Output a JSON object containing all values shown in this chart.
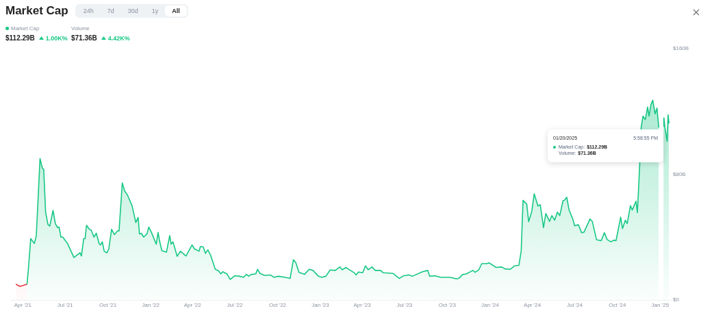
{
  "chart_data": {
    "type": "area",
    "title": "Market Cap",
    "annotations": [
      "24h",
      "7d",
      "30d",
      "1y",
      "All",
      "Market Cap",
      "$112.29B",
      "1.00K%",
      "Volume",
      "$71.36B",
      "4.42K%",
      "01/20/2025",
      "5:58:55 PM",
      "Market Cap:",
      "$112.29B",
      "Volume:",
      "$71.36B"
    ],
    "series": [
      {
        "color": "#ea3943",
        "x": [
          "2021-03-17",
          "2021-03-26",
          "2021-04-10"
        ],
        "values": [
          10.0,
          8.6,
          10.0
        ]
      },
      {
        "color": "#16c784",
        "x": [
          "2021-04-10",
          "2021-04-13",
          "2021-04-18",
          "2021-04-26",
          "2021-04-30",
          "2021-05-08",
          "2021-05-13",
          "2021-05-16",
          "2021-05-20",
          "2021-05-25",
          "2021-05-29",
          "2021-06-05",
          "2021-06-10",
          "2021-06-15",
          "2021-06-18",
          "2021-06-22",
          "2021-06-26",
          "2021-07-06",
          "2021-07-20",
          "2021-07-24",
          "2021-08-02",
          "2021-08-05",
          "2021-08-10",
          "2021-08-13",
          "2021-08-16",
          "2021-08-22",
          "2021-08-26",
          "2021-09-01",
          "2021-09-06",
          "2021-09-12",
          "2021-09-15",
          "2021-09-19",
          "2021-09-23",
          "2021-09-29",
          "2021-10-03",
          "2021-10-09",
          "2021-10-15",
          "2021-10-22",
          "2021-10-25",
          "2021-11-01",
          "2021-11-06",
          "2021-11-12",
          "2021-11-22",
          "2021-11-30",
          "2021-12-05",
          "2021-12-08",
          "2021-12-12",
          "2021-12-17",
          "2021-12-24",
          "2021-12-28",
          "2022-01-03",
          "2022-01-13",
          "2022-01-17",
          "2022-01-20",
          "2022-01-25",
          "2022-02-04",
          "2022-02-11",
          "2022-02-14",
          "2022-02-18",
          "2022-02-27",
          "2022-03-06",
          "2022-03-18",
          "2022-03-31",
          "2022-04-05",
          "2022-04-15",
          "2022-04-18",
          "2022-04-24",
          "2022-04-29",
          "2022-05-04",
          "2022-05-10",
          "2022-05-20",
          "2022-05-27",
          "2022-06-01",
          "2022-06-05",
          "2022-06-14",
          "2022-06-21",
          "2022-07-01",
          "2022-07-11",
          "2022-07-20",
          "2022-07-26",
          "2022-07-31",
          "2022-08-05",
          "2022-08-15",
          "2022-08-19",
          "2022-08-24",
          "2022-09-03",
          "2022-09-16",
          "2022-09-23",
          "2022-10-03",
          "2022-10-17",
          "2022-10-28",
          "2022-11-04",
          "2022-11-09",
          "2022-11-16",
          "2022-11-28",
          "2022-12-08",
          "2022-12-16",
          "2022-12-28",
          "2023-01-04",
          "2023-01-13",
          "2023-01-22",
          "2023-02-02",
          "2023-02-12",
          "2023-02-17",
          "2023-02-25",
          "2023-03-15",
          "2023-03-19",
          "2023-03-24",
          "2023-04-02",
          "2023-04-08",
          "2023-04-14",
          "2023-04-22",
          "2023-04-29",
          "2023-05-11",
          "2023-05-16",
          "2023-06-06",
          "2023-06-20",
          "2023-06-29",
          "2023-07-10",
          "2023-07-18",
          "2023-08-09",
          "2023-08-20",
          "2023-08-24",
          "2023-09-05",
          "2023-09-17",
          "2023-10-07",
          "2023-10-21",
          "2023-10-27",
          "2023-11-03",
          "2023-11-11",
          "2023-11-25",
          "2023-11-30",
          "2023-12-08",
          "2023-12-14",
          "2023-12-25",
          "2023-12-30",
          "2024-01-14",
          "2024-01-26",
          "2024-02-02",
          "2024-02-13",
          "2024-02-23",
          "2024-03-03",
          "2024-03-08",
          "2024-03-12",
          "2024-03-20",
          "2024-03-24",
          "2024-03-31",
          "2024-04-05",
          "2024-04-13",
          "2024-04-18",
          "2024-04-25",
          "2024-04-30",
          "2024-05-08",
          "2024-05-13",
          "2024-05-19",
          "2024-05-25",
          "2024-05-30",
          "2024-06-06",
          "2024-06-09",
          "2024-06-14",
          "2024-06-19",
          "2024-06-27",
          "2024-07-01",
          "2024-07-09",
          "2024-07-16",
          "2024-07-21",
          "2024-08-03",
          "2024-08-08",
          "2024-08-17",
          "2024-08-27",
          "2024-09-03",
          "2024-09-09",
          "2024-09-17",
          "2024-09-23",
          "2024-09-28",
          "2024-10-08",
          "2024-10-12",
          "2024-10-18",
          "2024-10-22",
          "2024-10-29",
          "2024-11-02",
          "2024-11-10",
          "2024-11-13",
          "2024-11-18",
          "2024-11-21",
          "2024-11-25",
          "2024-11-30",
          "2024-12-05",
          "2024-12-08",
          "2024-12-12",
          "2024-12-16",
          "2024-12-21",
          "2024-12-25",
          "2024-12-29",
          "2025-01-03",
          "2025-01-08",
          "2025-01-09",
          "2025-01-11",
          "2025-01-16",
          "2025-01-18",
          "2025-01-20"
        ],
        "values": [
          10.0,
          19.6,
          39,
          36,
          41,
          90,
          84,
          83,
          56,
          48,
          47,
          57,
          48.6,
          46,
          46.4,
          40,
          40,
          36,
          27,
          28,
          30,
          28,
          39,
          39,
          47.5,
          45,
          44.5,
          40,
          42.5,
          36,
          35,
          37,
          31,
          30,
          32.6,
          45,
          41.6,
          44,
          44,
          74.5,
          69.4,
          66.8,
          60,
          49.3,
          52.5,
          42,
          42.4,
          40,
          42,
          46.4,
          42.8,
          35.5,
          43,
          37.7,
          31.4,
          30.4,
          41,
          35.5,
          37,
          27.8,
          31,
          28,
          35,
          32.6,
          31,
          34,
          33.8,
          29.7,
          31.9,
          28.5,
          19.5,
          18.5,
          16.6,
          18,
          16.6,
          13,
          15.4,
          15.1,
          14.4,
          16.3,
          15.1,
          16.2,
          16.6,
          19.5,
          16.9,
          15.6,
          15.9,
          14.4,
          15.1,
          14.4,
          13.7,
          25.6,
          23.9,
          17.6,
          16.3,
          19.5,
          18.8,
          15.1,
          14.4,
          15.1,
          19.1,
          18.8,
          21,
          19.2,
          20.6,
          17.3,
          15.9,
          17.8,
          17.3,
          21.7,
          19.2,
          21,
          18.8,
          18.8,
          17.3,
          16.9,
          13.7,
          15.4,
          15.9,
          15.1,
          18,
          18.8,
          15.1,
          15.4,
          14.4,
          14.4,
          13.4,
          14,
          16.2,
          16.6,
          18.8,
          17.6,
          19.2,
          23.1,
          23.1,
          23.6,
          20.7,
          21,
          19.8,
          19.5,
          21.7,
          22,
          31,
          63.4,
          61,
          49.8,
          56.6,
          67.6,
          59.8,
          60.6,
          46,
          55,
          50,
          53.7,
          50.8,
          55.9,
          53.7,
          63.2,
          63.4,
          65.4,
          57.3,
          51.5,
          47.2,
          47.9,
          42.8,
          43.1,
          51.5,
          50,
          38.4,
          37.7,
          42.8,
          38.4,
          37,
          38.1,
          37.7,
          52.7,
          45.4,
          50.8,
          48.6,
          60,
          57.3,
          62.9,
          55.6,
          86.5,
          109.7,
          117,
          114.8,
          122.8,
          117,
          124.3,
          127.2,
          118.5,
          122.1,
          109.7,
          null,
          110.5,
          115.9,
          110,
          101,
          117.9,
          112.29
        ]
      }
    ],
    "xlim": [
      "2021-03-05",
      "2025-01-24"
    ],
    "xticks": [
      {
        "value": "2021-04-01",
        "label": "Apr '21"
      },
      {
        "value": "2021-07-01",
        "label": "Jul '21"
      },
      {
        "value": "2021-10-01",
        "label": "Oct '21"
      },
      {
        "value": "2022-01-01",
        "label": "Jan '22"
      },
      {
        "value": "2022-04-01",
        "label": "Apr '22"
      },
      {
        "value": "2022-07-01",
        "label": "Jul '22"
      },
      {
        "value": "2022-10-01",
        "label": "Oct '22"
      },
      {
        "value": "2023-01-01",
        "label": "Jan '23"
      },
      {
        "value": "2023-04-01",
        "label": "Apr '23"
      },
      {
        "value": "2023-07-01",
        "label": "Jul '23"
      },
      {
        "value": "2023-10-01",
        "label": "Oct '23"
      },
      {
        "value": "2024-01-01",
        "label": "Jan '24"
      },
      {
        "value": "2024-04-01",
        "label": "Apr '24"
      },
      {
        "value": "2024-07-01",
        "label": "Jul '24"
      },
      {
        "value": "2024-10-01",
        "label": "Oct '24"
      },
      {
        "value": "2025-01-01",
        "label": "Jan '25"
      }
    ],
    "ylim": [
      0,
      160
    ],
    "yticks": [
      {
        "value": 0,
        "label": "$0"
      },
      {
        "value": 80,
        "label": "$80B"
      },
      {
        "value": 160,
        "label": "$160B"
      }
    ],
    "grid": false,
    "legend": false,
    "marker": "none",
    "line_style": "solid"
  }
}
